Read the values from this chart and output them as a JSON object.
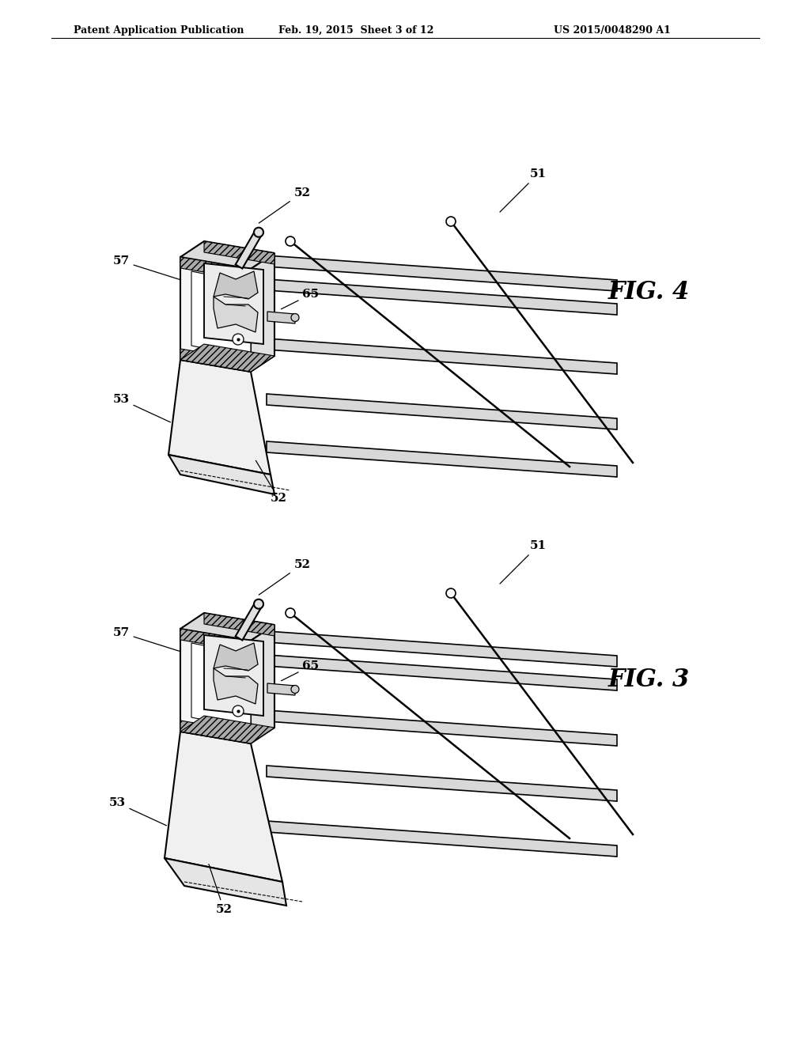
{
  "background_color": "#ffffff",
  "header_left": "Patent Application Publication",
  "header_center": "Feb. 19, 2015  Sheet 3 of 12",
  "header_right": "US 2015/0048290 A1",
  "fig4_label": "FIG. 4",
  "fig3_label": "FIG. 3",
  "line_color": "#000000",
  "fig4_oy": 870,
  "fig3_oy": 400
}
